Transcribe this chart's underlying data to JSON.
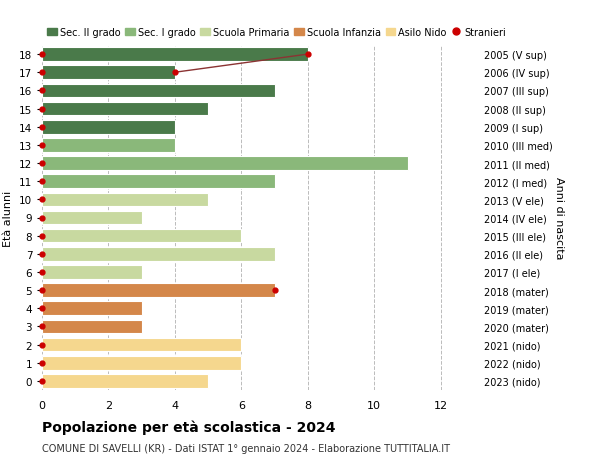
{
  "ages": [
    0,
    1,
    2,
    3,
    4,
    5,
    6,
    7,
    8,
    9,
    10,
    11,
    12,
    13,
    14,
    15,
    16,
    17,
    18
  ],
  "right_labels": [
    "2023 (nido)",
    "2022 (nido)",
    "2021 (nido)",
    "2020 (mater)",
    "2019 (mater)",
    "2018 (mater)",
    "2017 (I ele)",
    "2016 (II ele)",
    "2015 (III ele)",
    "2014 (IV ele)",
    "2013 (V ele)",
    "2012 (I med)",
    "2011 (II med)",
    "2010 (III med)",
    "2009 (I sup)",
    "2008 (II sup)",
    "2007 (III sup)",
    "2006 (IV sup)",
    "2005 (V sup)"
  ],
  "values": [
    5,
    6,
    6,
    3,
    3,
    7,
    3,
    7,
    6,
    3,
    5,
    7,
    11,
    4,
    4,
    5,
    7,
    4,
    8
  ],
  "stranieri_x": [
    0,
    0,
    0,
    0,
    0,
    7,
    0,
    0,
    0,
    0,
    0,
    0,
    0,
    0,
    0,
    0,
    0,
    4,
    8
  ],
  "bar_colors": [
    "#f5d78e",
    "#f5d78e",
    "#f5d78e",
    "#d4874a",
    "#d4874a",
    "#d4874a",
    "#c8d9a0",
    "#c8d9a0",
    "#c8d9a0",
    "#c8d9a0",
    "#c8d9a0",
    "#8ab87a",
    "#8ab87a",
    "#8ab87a",
    "#4a7a4a",
    "#4a7a4a",
    "#4a7a4a",
    "#4a7a4a",
    "#4a7a4a"
  ],
  "legend_labels": [
    "Sec. II grado",
    "Sec. I grado",
    "Scuola Primaria",
    "Scuola Infanzia",
    "Asilo Nido",
    "Stranieri"
  ],
  "legend_colors": [
    "#4a7a4a",
    "#8ab87a",
    "#c8d9a0",
    "#d4874a",
    "#f5d78e",
    "#cc0000"
  ],
  "title": "Popolazione per età scolastica - 2024",
  "subtitle": "COMUNE DI SAVELLI (KR) - Dati ISTAT 1° gennaio 2024 - Elaborazione TUTTITALIA.IT",
  "ylabel": "Età alunni",
  "right_ylabel": "Anni di nascita",
  "background_color": "#ffffff",
  "grid_color": "#cccccc"
}
